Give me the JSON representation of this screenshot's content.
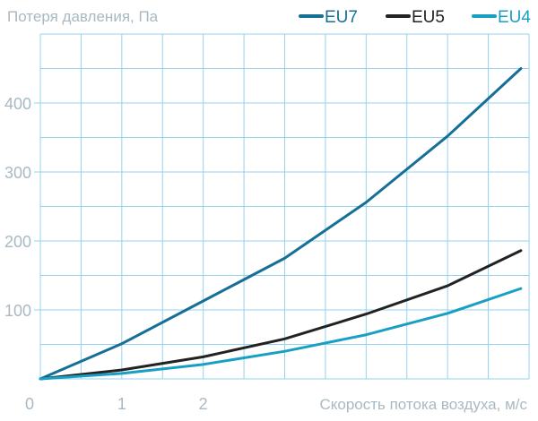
{
  "chart_data": {
    "type": "line",
    "title": "",
    "ylabel": "Потеря давления, Па",
    "xlabel": "Скорость потока воздуха, м/с",
    "xlim": [
      0,
      6
    ],
    "ylim": [
      0,
      500
    ],
    "x_ticks": [
      "0",
      "1",
      "2"
    ],
    "y_ticks": [
      "100",
      "200",
      "300",
      "400"
    ],
    "grid": true,
    "legend_position": "top-right",
    "x": [
      0,
      1,
      2,
      3,
      4,
      5,
      5.9
    ],
    "series": [
      {
        "name": "EU7",
        "color": "#166f96",
        "values": [
          0,
          51,
          113,
          175,
          256,
          352,
          450
        ]
      },
      {
        "name": "EU5",
        "color": "#222222",
        "values": [
          0,
          13,
          32,
          58,
          94,
          135,
          186
        ]
      },
      {
        "name": "EU4",
        "color": "#1a9fc4",
        "values": [
          0,
          8,
          21,
          40,
          64,
          95,
          131
        ]
      }
    ]
  }
}
